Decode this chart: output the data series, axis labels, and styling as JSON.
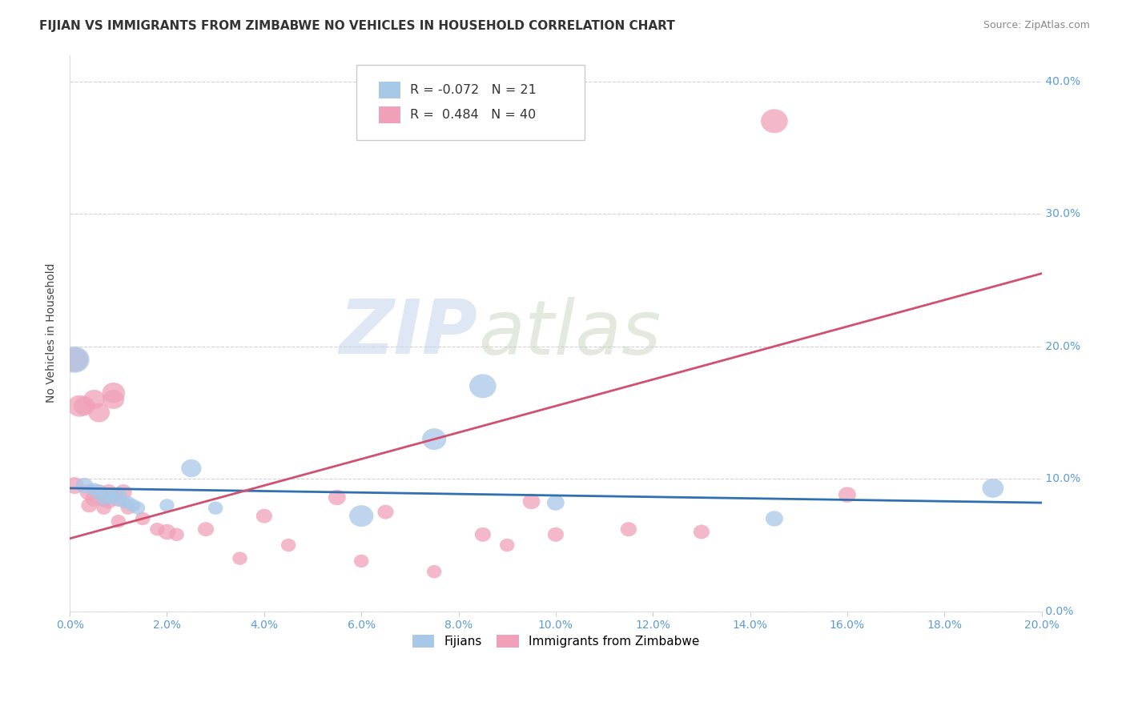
{
  "title": "FIJIAN VS IMMIGRANTS FROM ZIMBABWE NO VEHICLES IN HOUSEHOLD CORRELATION CHART",
  "source": "Source: ZipAtlas.com",
  "xlim": [
    0.0,
    0.2
  ],
  "ylim": [
    0.0,
    0.42
  ],
  "legend_r_blue": "-0.072",
  "legend_n_blue": "21",
  "legend_r_pink": "0.484",
  "legend_n_pink": "40",
  "ylabel": "No Vehicles in Household",
  "legend_label_blue": "Fijians",
  "legend_label_pink": "Immigrants from Zimbabwe",
  "blue_color": "#A8C8E8",
  "pink_color": "#F0A0B8",
  "blue_line_color": "#3070B0",
  "pink_line_color": "#D05070",
  "watermark_zip": "ZIP",
  "watermark_atlas": "atlas",
  "grid_color": "#CCCCCC",
  "background_color": "#FFFFFF",
  "title_fontsize": 11,
  "axis_tick_fontsize": 10,
  "blue_scatter_x": [
    0.001,
    0.003,
    0.005,
    0.006,
    0.007,
    0.008,
    0.009,
    0.01,
    0.011,
    0.012,
    0.013,
    0.014,
    0.02,
    0.025,
    0.03,
    0.06,
    0.075,
    0.085,
    0.1,
    0.145,
    0.19
  ],
  "blue_scatter_y": [
    0.19,
    0.095,
    0.092,
    0.09,
    0.085,
    0.088,
    0.085,
    0.088,
    0.083,
    0.082,
    0.08,
    0.078,
    0.08,
    0.108,
    0.078,
    0.072,
    0.13,
    0.17,
    0.082,
    0.07,
    0.093
  ],
  "blue_scatter_s": [
    220,
    130,
    110,
    120,
    110,
    120,
    110,
    130,
    110,
    110,
    110,
    110,
    110,
    150,
    110,
    180,
    180,
    200,
    130,
    130,
    160
  ],
  "pink_scatter_x": [
    0.001,
    0.001,
    0.002,
    0.003,
    0.004,
    0.004,
    0.005,
    0.005,
    0.006,
    0.006,
    0.007,
    0.007,
    0.008,
    0.008,
    0.009,
    0.009,
    0.01,
    0.01,
    0.011,
    0.012,
    0.015,
    0.018,
    0.02,
    0.022,
    0.028,
    0.035,
    0.04,
    0.045,
    0.055,
    0.06,
    0.065,
    0.075,
    0.085,
    0.09,
    0.095,
    0.1,
    0.115,
    0.13,
    0.145,
    0.16
  ],
  "pink_scatter_y": [
    0.19,
    0.095,
    0.155,
    0.155,
    0.09,
    0.08,
    0.16,
    0.085,
    0.15,
    0.09,
    0.085,
    0.078,
    0.09,
    0.083,
    0.16,
    0.165,
    0.085,
    0.068,
    0.09,
    0.078,
    0.07,
    0.062,
    0.06,
    0.058,
    0.062,
    0.04,
    0.072,
    0.05,
    0.086,
    0.038,
    0.075,
    0.03,
    0.058,
    0.05,
    0.083,
    0.058,
    0.062,
    0.06,
    0.37,
    0.088
  ],
  "pink_scatter_s": [
    200,
    140,
    180,
    160,
    140,
    120,
    160,
    130,
    160,
    130,
    130,
    110,
    130,
    120,
    160,
    170,
    130,
    110,
    130,
    110,
    110,
    110,
    130,
    110,
    120,
    110,
    120,
    110,
    130,
    110,
    120,
    110,
    120,
    110,
    130,
    120,
    120,
    120,
    200,
    130
  ],
  "blue_line_x0": 0.0,
  "blue_line_x1": 0.2,
  "blue_line_y0": 0.093,
  "blue_line_y1": 0.082,
  "pink_line_x0": 0.0,
  "pink_line_x1": 0.2,
  "pink_line_y0": 0.055,
  "pink_line_y1": 0.255
}
